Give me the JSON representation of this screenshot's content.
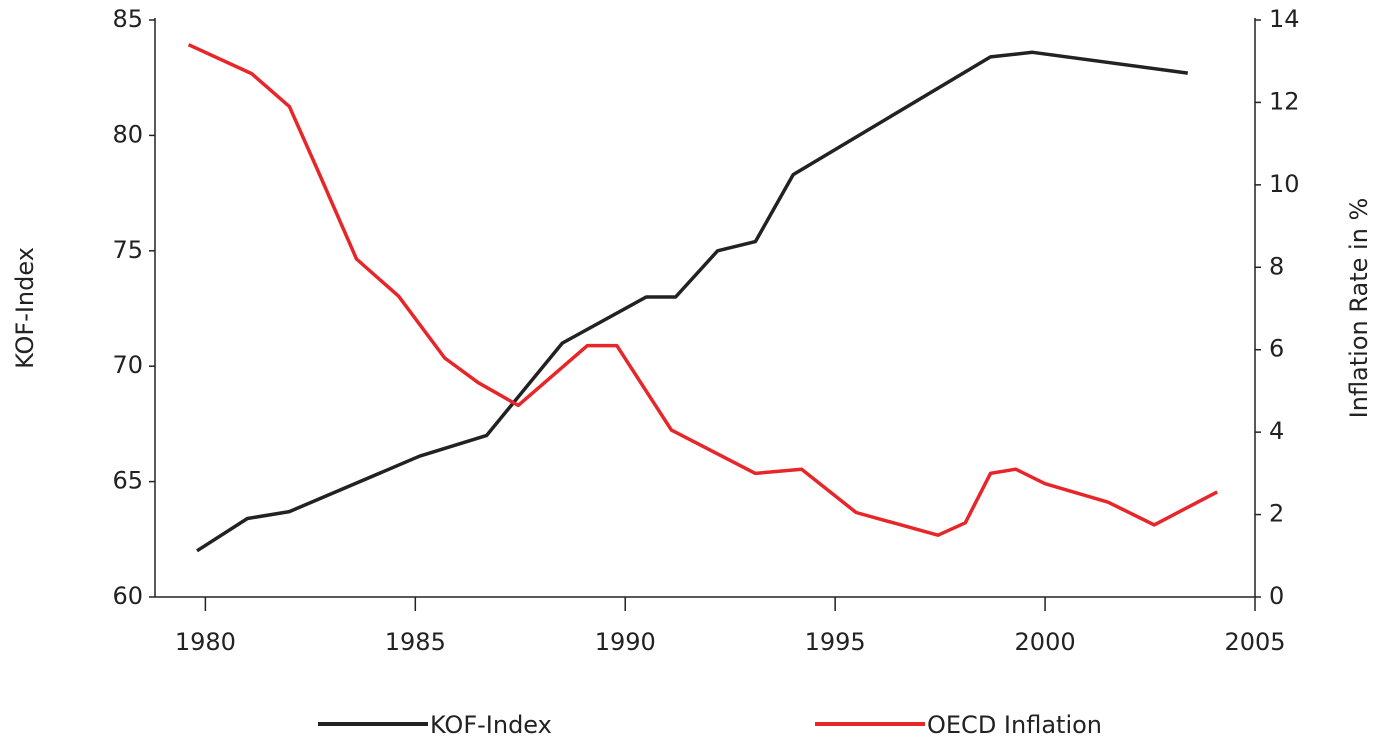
{
  "chart_data": {
    "type": "line",
    "y_label": "KOF-Index",
    "y2_label": "Inflation Rate in %",
    "xlim": [
      1978.8,
      2005
    ],
    "xticks": [
      1980,
      1985,
      1990,
      1995,
      2000,
      2005
    ],
    "ylim": [
      60,
      85
    ],
    "yticks": [
      60,
      65,
      70,
      75,
      80,
      85
    ],
    "y2lim": [
      0,
      14
    ],
    "y2ticks": [
      0,
      2,
      4,
      6,
      8,
      10,
      12,
      14
    ],
    "series": [
      {
        "name": "KOF-Index",
        "color": "#222222",
        "x": [
          1979.8,
          1981.0,
          1982.0,
          1985.1,
          1986.7,
          1988.5,
          1990.5,
          1991.2,
          1992.2,
          1993.1,
          1994.0,
          1998.7,
          1999.7,
          2003.4
        ],
        "values": [
          62.0,
          63.4,
          63.7,
          66.1,
          67.0,
          71.0,
          73.0,
          73.0,
          75.0,
          75.4,
          78.3,
          83.4,
          83.6,
          82.7
        ]
      },
      {
        "name": "OECD Inflation",
        "color": "#e8262a",
        "axis": "y2",
        "x": [
          1979.6,
          1981.1,
          1982.0,
          1982.7,
          1983.6,
          1984.6,
          1985.7,
          1986.5,
          1987.45,
          1989.1,
          1989.8,
          1991.1,
          1993.1,
          1994.2,
          1995.5,
          1997.45,
          1998.1,
          1998.7,
          1999.3,
          2000.0,
          2001.5,
          2002.6,
          2004.1
        ],
        "values": [
          13.4,
          12.7,
          11.9,
          10.3,
          8.2,
          7.3,
          5.8,
          5.2,
          4.65,
          6.1,
          6.1,
          4.05,
          3.0,
          3.1,
          2.05,
          1.5,
          1.8,
          3.0,
          3.1,
          2.75,
          2.3,
          1.75,
          2.55
        ]
      }
    ]
  }
}
